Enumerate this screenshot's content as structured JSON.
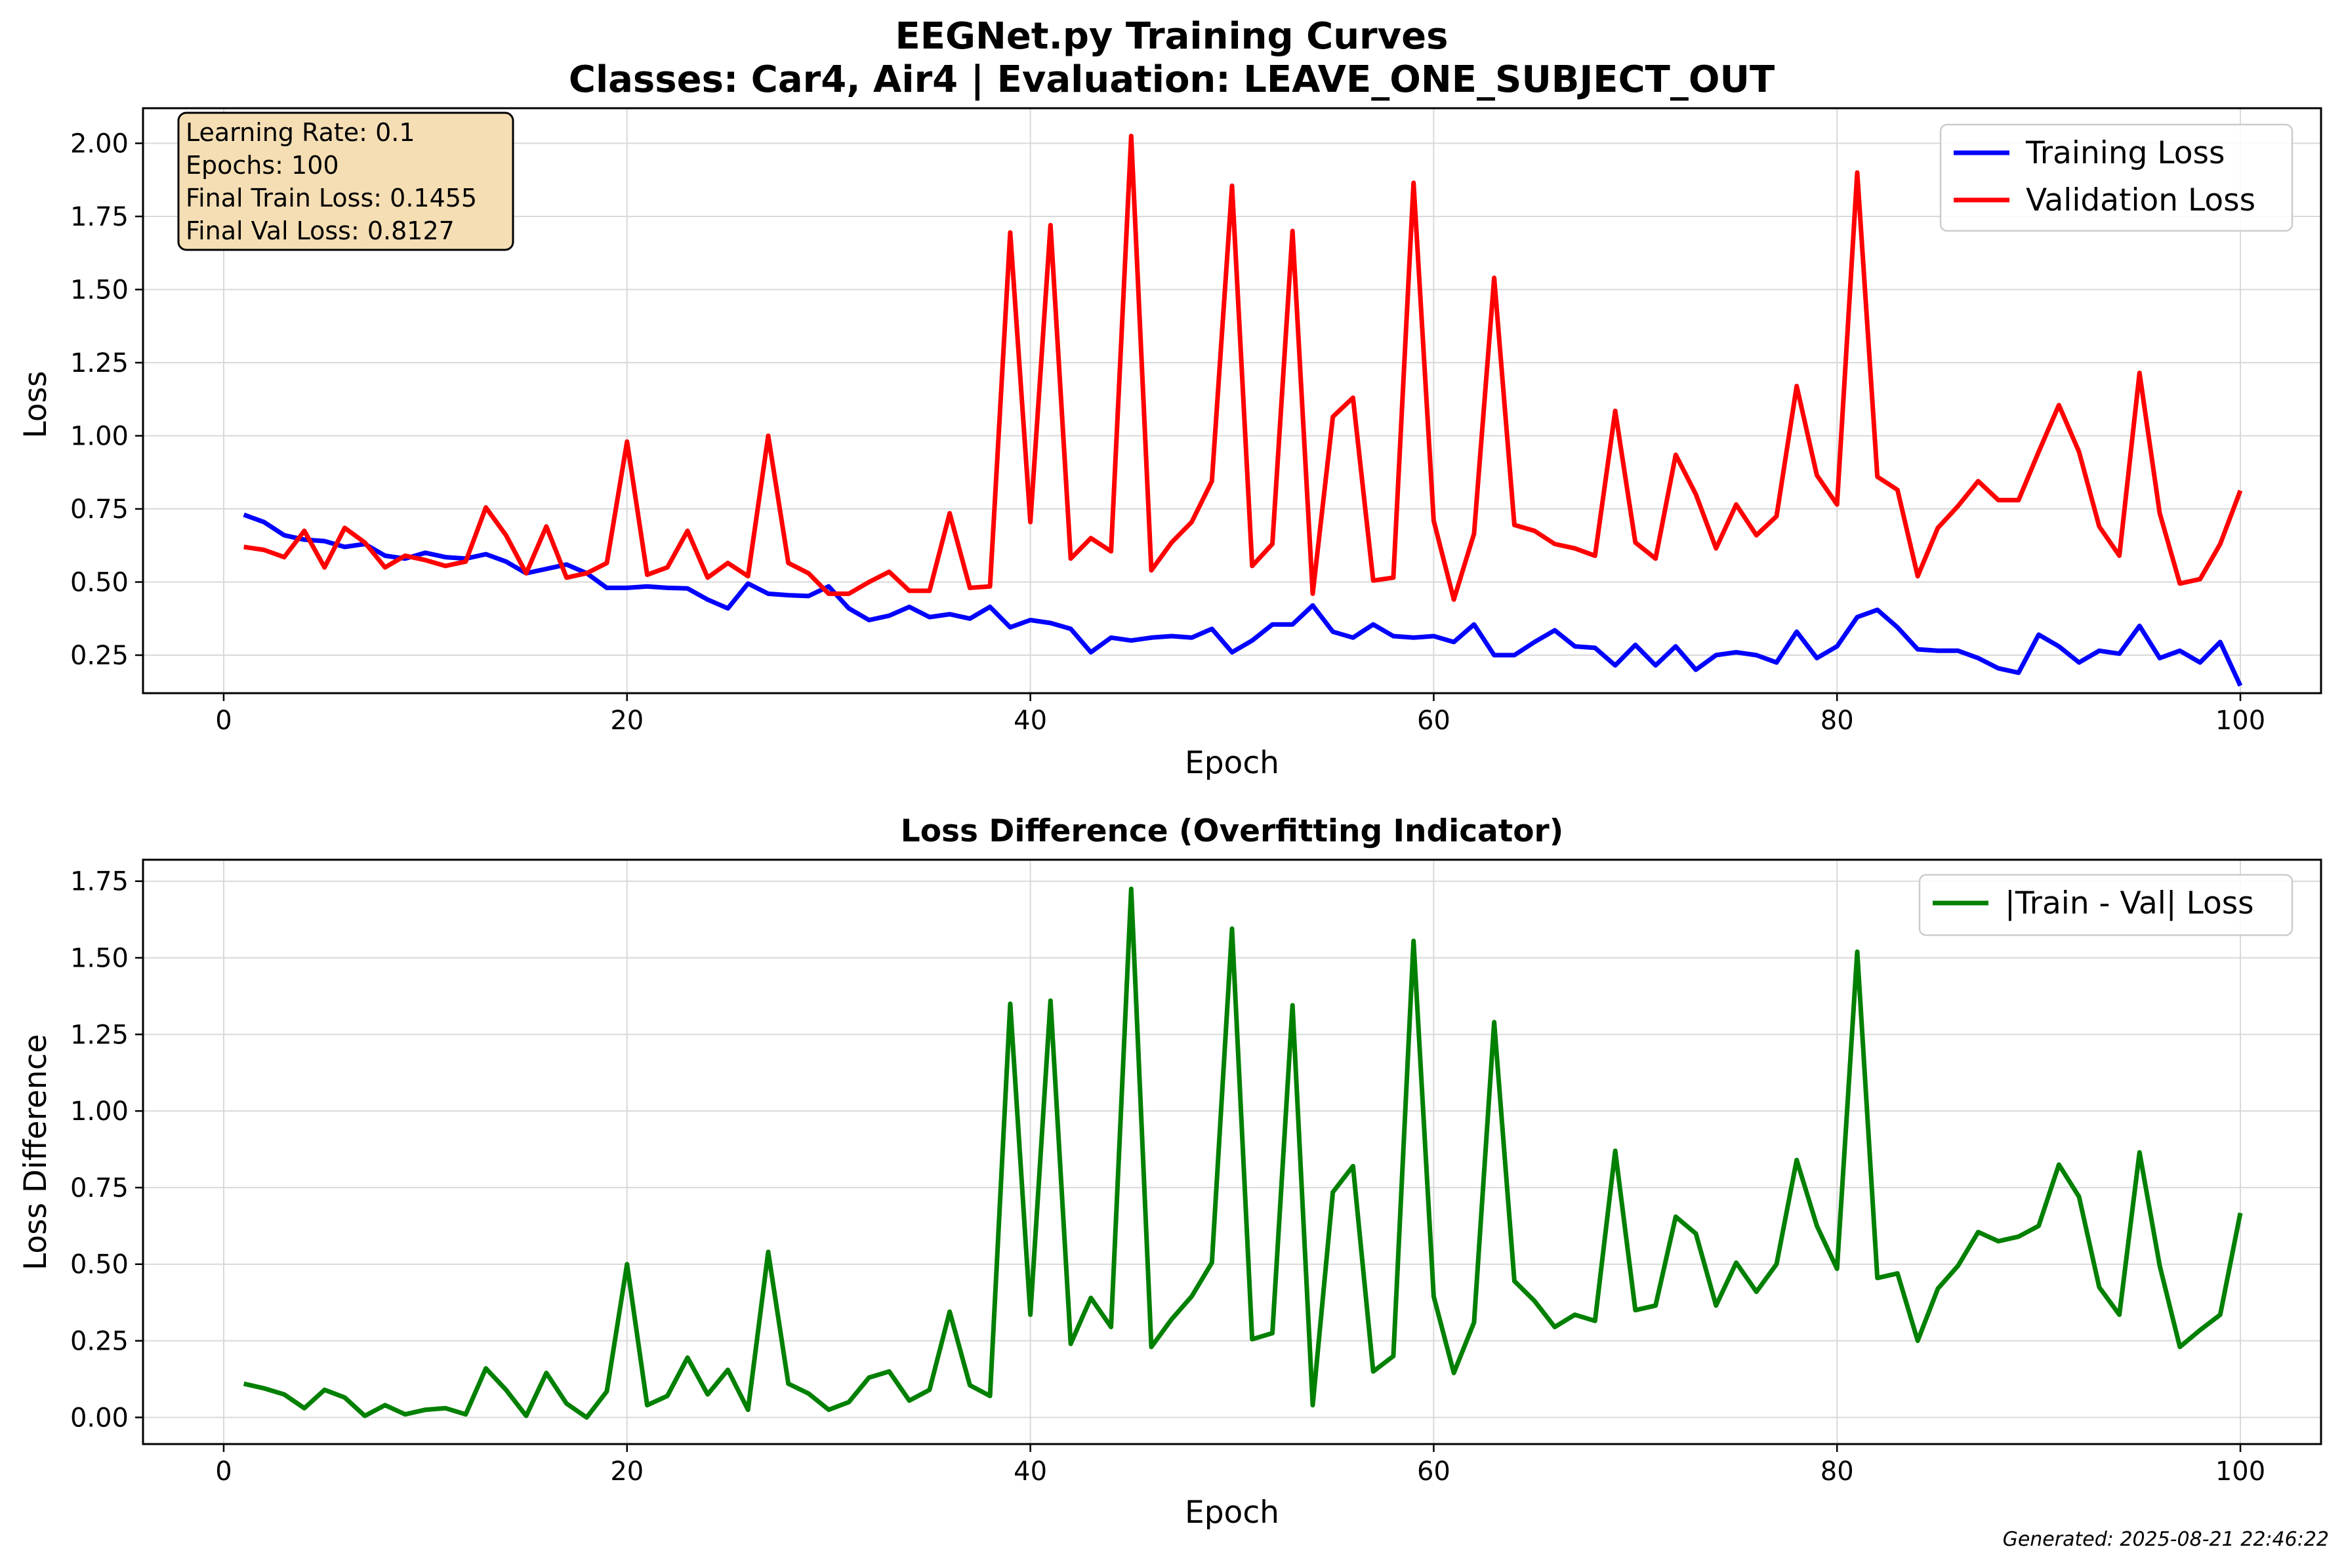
{
  "figure": {
    "title_line1": "EEGNet.py Training Curves",
    "title_line2": "Classes: Car4, Air4 | Evaluation: LEAVE_ONE_SUBJECT_OUT",
    "footer": "Generated: 2025-08-21 22:46:22"
  },
  "info_box": {
    "lines": [
      "Learning Rate: 0.1",
      "Epochs: 100",
      "Final Train Loss: 0.1455",
      "Final Val Loss: 0.8127"
    ],
    "fill": "#f5deb3"
  },
  "chart_data": [
    {
      "type": "line",
      "title": "",
      "xlabel": "Epoch",
      "ylabel": "Loss",
      "xlim": [
        -4,
        104
      ],
      "ylim": [
        0.12,
        2.12
      ],
      "xticks": [
        0,
        20,
        40,
        60,
        80,
        100
      ],
      "yticks": [
        0.25,
        0.5,
        0.75,
        1.0,
        1.25,
        1.5,
        1.75,
        2.0
      ],
      "ytick_labels": [
        "0.25",
        "0.50",
        "0.75",
        "1.00",
        "1.25",
        "1.50",
        "1.75",
        "2.00"
      ],
      "grid": true,
      "legend_position": "upper-right",
      "x": [
        1,
        2,
        3,
        4,
        5,
        6,
        7,
        8,
        9,
        10,
        11,
        12,
        13,
        14,
        15,
        16,
        17,
        18,
        19,
        20,
        21,
        22,
        23,
        24,
        25,
        26,
        27,
        28,
        29,
        30,
        31,
        32,
        33,
        34,
        35,
        36,
        37,
        38,
        39,
        40,
        41,
        42,
        43,
        44,
        45,
        46,
        47,
        48,
        49,
        50,
        51,
        52,
        53,
        54,
        55,
        56,
        57,
        58,
        59,
        60,
        61,
        62,
        63,
        64,
        65,
        66,
        67,
        68,
        69,
        70,
        71,
        72,
        73,
        74,
        75,
        76,
        77,
        78,
        79,
        80,
        81,
        82,
        83,
        84,
        85,
        86,
        87,
        88,
        89,
        90,
        91,
        92,
        93,
        94,
        95,
        96,
        97,
        98,
        99,
        100
      ],
      "series": [
        {
          "name": "Training Loss",
          "color": "#0000ff",
          "values": [
            0.73,
            0.705,
            0.66,
            0.645,
            0.64,
            0.62,
            0.63,
            0.59,
            0.58,
            0.6,
            0.585,
            0.58,
            0.595,
            0.57,
            0.53,
            0.545,
            0.56,
            0.53,
            0.48,
            0.48,
            0.485,
            0.48,
            0.478,
            0.44,
            0.41,
            0.495,
            0.46,
            0.455,
            0.452,
            0.485,
            0.41,
            0.37,
            0.385,
            0.415,
            0.38,
            0.39,
            0.375,
            0.415,
            0.345,
            0.37,
            0.36,
            0.34,
            0.26,
            0.31,
            0.3,
            0.31,
            0.315,
            0.31,
            0.34,
            0.26,
            0.3,
            0.355,
            0.355,
            0.42,
            0.33,
            0.31,
            0.355,
            0.315,
            0.31,
            0.315,
            0.295,
            0.355,
            0.25,
            0.25,
            0.295,
            0.335,
            0.28,
            0.275,
            0.215,
            0.285,
            0.215,
            0.28,
            0.2,
            0.25,
            0.26,
            0.25,
            0.225,
            0.33,
            0.24,
            0.28,
            0.38,
            0.405,
            0.345,
            0.27,
            0.265,
            0.265,
            0.24,
            0.205,
            0.19,
            0.32,
            0.28,
            0.225,
            0.265,
            0.255,
            0.35,
            0.24,
            0.265,
            0.225,
            0.295,
            0.1455
          ]
        },
        {
          "name": "Validation Loss",
          "color": "#ff0000",
          "values": [
            0.62,
            0.61,
            0.585,
            0.675,
            0.55,
            0.685,
            0.635,
            0.55,
            0.59,
            0.575,
            0.555,
            0.57,
            0.755,
            0.66,
            0.53,
            0.69,
            0.515,
            0.53,
            0.565,
            0.98,
            0.525,
            0.55,
            0.675,
            0.515,
            0.565,
            0.52,
            1.0,
            0.565,
            0.53,
            0.46,
            0.46,
            0.5,
            0.535,
            0.47,
            0.47,
            0.735,
            0.48,
            0.485,
            1.695,
            0.705,
            1.72,
            0.58,
            0.65,
            0.605,
            2.025,
            0.54,
            0.635,
            0.705,
            0.845,
            1.855,
            0.555,
            0.63,
            1.7,
            0.46,
            1.065,
            1.13,
            0.505,
            0.515,
            1.865,
            0.71,
            0.44,
            0.665,
            1.54,
            0.695,
            0.675,
            0.63,
            0.615,
            0.59,
            1.085,
            0.635,
            0.58,
            0.935,
            0.8,
            0.615,
            0.765,
            0.66,
            0.725,
            1.17,
            0.865,
            0.765,
            1.9,
            0.86,
            0.815,
            0.52,
            0.685,
            0.76,
            0.845,
            0.78,
            0.78,
            0.945,
            1.105,
            0.945,
            0.69,
            0.59,
            1.215,
            0.735,
            0.495,
            0.51,
            0.63,
            0.8127
          ]
        }
      ]
    },
    {
      "type": "line",
      "title": "Loss Difference (Overfitting Indicator)",
      "xlabel": "Epoch",
      "ylabel": "Loss Difference",
      "xlim": [
        -4,
        104
      ],
      "ylim": [
        -0.087,
        1.82
      ],
      "xticks": [
        0,
        20,
        40,
        60,
        80,
        100
      ],
      "yticks": [
        0.0,
        0.25,
        0.5,
        0.75,
        1.0,
        1.25,
        1.5,
        1.75
      ],
      "ytick_labels": [
        "0.00",
        "0.25",
        "0.50",
        "0.75",
        "1.00",
        "1.25",
        "1.50",
        "1.75"
      ],
      "grid": true,
      "legend_position": "upper-right",
      "x": [
        1,
        2,
        3,
        4,
        5,
        6,
        7,
        8,
        9,
        10,
        11,
        12,
        13,
        14,
        15,
        16,
        17,
        18,
        19,
        20,
        21,
        22,
        23,
        24,
        25,
        26,
        27,
        28,
        29,
        30,
        31,
        32,
        33,
        34,
        35,
        36,
        37,
        38,
        39,
        40,
        41,
        42,
        43,
        44,
        45,
        46,
        47,
        48,
        49,
        50,
        51,
        52,
        53,
        54,
        55,
        56,
        57,
        58,
        59,
        60,
        61,
        62,
        63,
        64,
        65,
        66,
        67,
        68,
        69,
        70,
        71,
        72,
        73,
        74,
        75,
        76,
        77,
        78,
        79,
        80,
        81,
        82,
        83,
        84,
        85,
        86,
        87,
        88,
        89,
        90,
        91,
        92,
        93,
        94,
        95,
        96,
        97,
        98,
        99,
        100
      ],
      "series": [
        {
          "name": "|Train - Val| Loss",
          "color": "#008000",
          "values": [
            0.11,
            0.095,
            0.075,
            0.03,
            0.09,
            0.065,
            0.005,
            0.04,
            0.01,
            0.025,
            0.03,
            0.01,
            0.16,
            0.09,
            0.005,
            0.145,
            0.045,
            0.0,
            0.085,
            0.5,
            0.04,
            0.07,
            0.195,
            0.075,
            0.155,
            0.025,
            0.54,
            0.11,
            0.078,
            0.025,
            0.05,
            0.13,
            0.15,
            0.055,
            0.09,
            0.345,
            0.105,
            0.07,
            1.35,
            0.335,
            1.36,
            0.24,
            0.39,
            0.295,
            1.725,
            0.23,
            0.32,
            0.395,
            0.505,
            1.595,
            0.255,
            0.275,
            1.345,
            0.04,
            0.735,
            0.82,
            0.15,
            0.2,
            1.555,
            0.395,
            0.145,
            0.31,
            1.29,
            0.445,
            0.38,
            0.295,
            0.335,
            0.315,
            0.87,
            0.35,
            0.365,
            0.655,
            0.6,
            0.365,
            0.505,
            0.41,
            0.5,
            0.84,
            0.625,
            0.485,
            1.52,
            0.455,
            0.47,
            0.25,
            0.42,
            0.495,
            0.605,
            0.575,
            0.59,
            0.625,
            0.825,
            0.72,
            0.425,
            0.335,
            0.865,
            0.495,
            0.23,
            0.285,
            0.335,
            0.667
          ]
        }
      ]
    }
  ]
}
